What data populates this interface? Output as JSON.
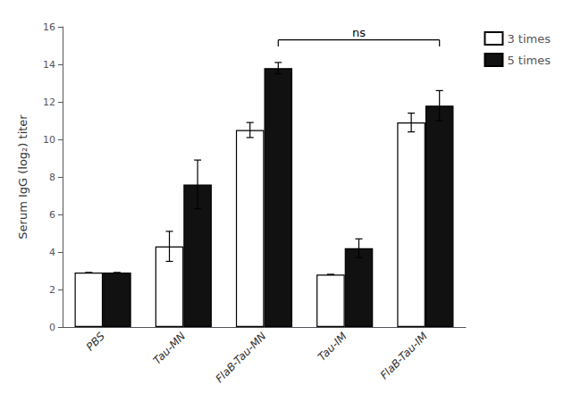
{
  "chart_data": {
    "type": "bar",
    "categories": [
      "PBS",
      "Tau-MN",
      "FlaB-Tau-MN",
      "Tau-IM",
      "FlaB-Tau-IM"
    ],
    "series": [
      {
        "name": "3 times",
        "color": "#ffffff",
        "values": [
          2.9,
          4.3,
          10.5,
          2.8,
          10.9
        ],
        "errors": [
          0.0,
          0.8,
          0.4,
          0.0,
          0.5
        ]
      },
      {
        "name": "5 times",
        "color": "#111111",
        "values": [
          2.9,
          7.6,
          13.8,
          4.2,
          11.8
        ],
        "errors": [
          0.0,
          1.3,
          0.3,
          0.5,
          0.8
        ]
      }
    ],
    "ylabel": "Serum IgG (log₂) titer",
    "ylim": [
      0,
      16
    ],
    "yticks": [
      0,
      2,
      4,
      6,
      8,
      10,
      12,
      14,
      16
    ],
    "grid": false,
    "legend": "right",
    "annotations": [
      {
        "text": "ns",
        "from": "FlaB-Tau-MN",
        "to": "FlaB-Tau-IM",
        "series": "5 times",
        "y": 15.3
      }
    ]
  }
}
